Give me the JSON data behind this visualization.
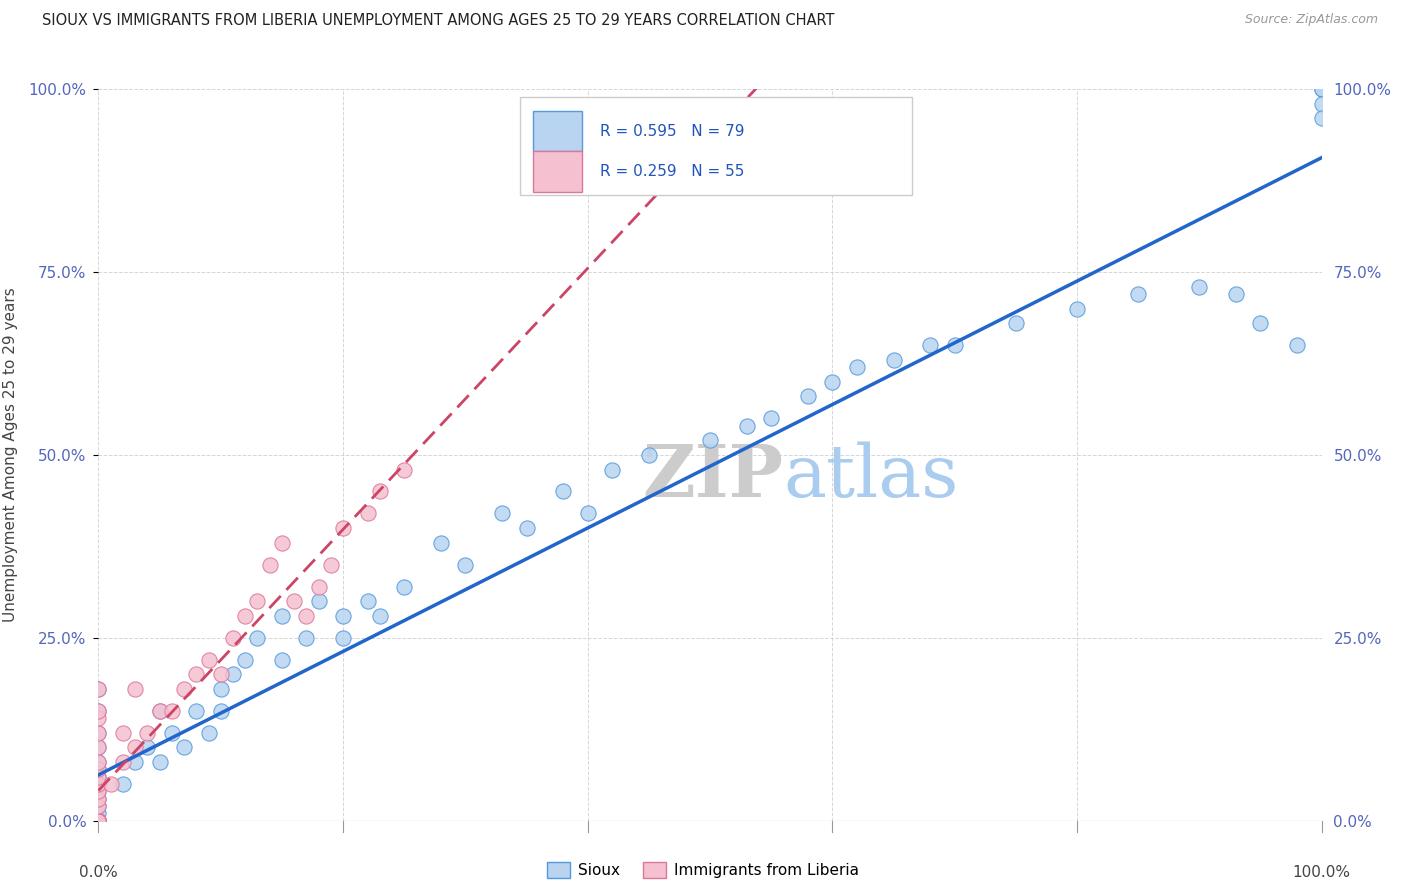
{
  "title": "SIOUX VS IMMIGRANTS FROM LIBERIA UNEMPLOYMENT AMONG AGES 25 TO 29 YEARS CORRELATION CHART",
  "source": "Source: ZipAtlas.com",
  "ylabel": "Unemployment Among Ages 25 to 29 years",
  "legend_sioux_label": "Sioux",
  "legend_liberia_label": "Immigrants from Liberia",
  "r_sioux": "R = 0.595",
  "n_sioux": "N = 79",
  "r_liberia": "R = 0.259",
  "n_liberia": "N = 55",
  "sioux_color": "#b8d4f0",
  "sioux_edge_color": "#5599dd",
  "sioux_line_color": "#2266cc",
  "liberia_color": "#f5c0d0",
  "liberia_edge_color": "#dd7799",
  "liberia_line_color": "#cc4466",
  "watermark_zip": "ZIP",
  "watermark_atlas": "atlas",
  "sioux_x": [
    0,
    0,
    0,
    0,
    0,
    0,
    0,
    0,
    0,
    0,
    0,
    0,
    0,
    0,
    0,
    0,
    0,
    0,
    0,
    0,
    0,
    0,
    0,
    0,
    0,
    0,
    0,
    0,
    2,
    3,
    4,
    5,
    5,
    6,
    7,
    8,
    9,
    10,
    10,
    11,
    12,
    13,
    15,
    15,
    17,
    18,
    20,
    20,
    22,
    23,
    25,
    28,
    30,
    33,
    35,
    38,
    40,
    42,
    45,
    50,
    53,
    55,
    58,
    60,
    62,
    65,
    68,
    70,
    75,
    80,
    85,
    90,
    93,
    95,
    98,
    100,
    100,
    100,
    100
  ],
  "sioux_y": [
    0,
    0,
    0,
    0,
    0,
    0,
    0,
    0,
    0,
    0,
    0,
    0,
    0,
    0,
    0,
    0,
    1,
    2,
    3,
    4,
    5,
    6,
    7,
    8,
    10,
    12,
    15,
    18,
    5,
    8,
    10,
    8,
    15,
    12,
    10,
    15,
    12,
    15,
    18,
    20,
    22,
    25,
    22,
    28,
    25,
    30,
    25,
    28,
    30,
    28,
    32,
    38,
    35,
    42,
    40,
    45,
    42,
    48,
    50,
    52,
    54,
    55,
    58,
    60,
    62,
    63,
    65,
    65,
    68,
    70,
    72,
    73,
    72,
    68,
    65,
    100,
    100,
    98,
    96
  ],
  "liberia_x": [
    0,
    0,
    0,
    0,
    0,
    0,
    0,
    0,
    0,
    0,
    0,
    0,
    0,
    0,
    0,
    0,
    0,
    0,
    0,
    0,
    0,
    0,
    0,
    0,
    0,
    0,
    0,
    0,
    0,
    0,
    1,
    2,
    2,
    3,
    3,
    4,
    5,
    6,
    7,
    8,
    9,
    10,
    11,
    12,
    13,
    14,
    15,
    16,
    17,
    18,
    19,
    20,
    22,
    23,
    25
  ],
  "liberia_y": [
    0,
    0,
    0,
    0,
    0,
    0,
    0,
    0,
    0,
    0,
    0,
    0,
    0,
    0,
    0,
    0,
    0,
    0,
    2,
    3,
    4,
    5,
    6,
    7,
    8,
    10,
    12,
    14,
    15,
    18,
    5,
    8,
    12,
    10,
    18,
    12,
    15,
    15,
    18,
    20,
    22,
    20,
    25,
    28,
    30,
    35,
    38,
    30,
    28,
    32,
    35,
    40,
    42,
    45,
    48
  ]
}
